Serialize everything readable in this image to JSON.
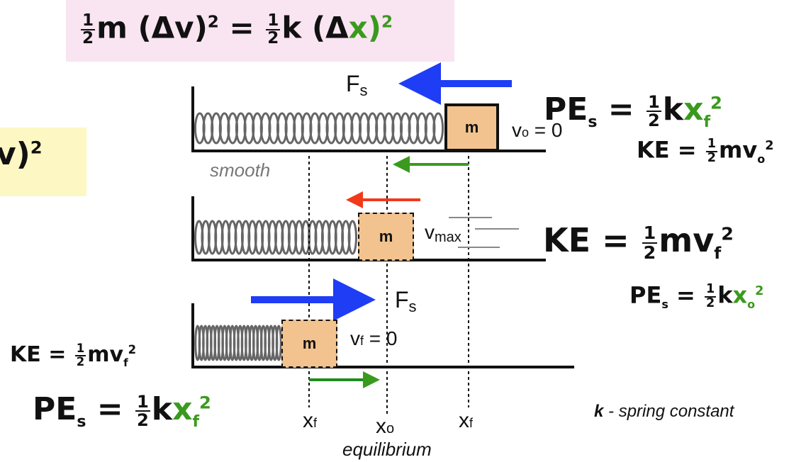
{
  "top_equation": {
    "one": "1",
    "two": "2",
    "m": "m",
    "paren_open": "(",
    "delta_v": "Δv",
    "paren_close": ")",
    "sq": "2",
    "equals": "=",
    "k": "k",
    "delta": "Δ",
    "x": "x"
  },
  "left_partial": {
    "text": "v)",
    "sq": "2"
  },
  "labels": {
    "fs_top": "F",
    "fs_top_sub": "s",
    "fs_bottom": "F",
    "fs_bottom_sub": "s",
    "v0": "v",
    "v0_sub": "o",
    "v0_eq": " = 0",
    "vmax": "v",
    "vmax_sub": "max",
    "vf": "v",
    "vf_sub": "f",
    "vf_eq": " = 0",
    "smooth": "smooth",
    "xf_left": "x",
    "xf_left_sub": "f",
    "xo": "x",
    "xo_sub": "o",
    "xf_right": "x",
    "xf_right_sub": "f",
    "equilibrium": "equilibrium",
    "k_bold": "k",
    "k_desc": " - spring constant",
    "mass": "m"
  },
  "eq_pe_top": {
    "pe": "PE",
    "s": "s",
    "eq": "=",
    "k": "k",
    "x": "x",
    "f": "f",
    "sq": "2"
  },
  "eq_ke_top": {
    "ke": "KE",
    "eq": "=",
    "m": "mv",
    "o": "o",
    "sq": "2"
  },
  "eq_ke_mid": {
    "ke": "KE",
    "eq": "=",
    "m": "mv",
    "f": "f",
    "sq": "2"
  },
  "eq_pe_mid": {
    "pe": "PE",
    "s": "s",
    "eq": "=",
    "k": "k",
    "x": "x",
    "o": "o",
    "sq": "2"
  },
  "eq_ke_left": {
    "ke": "KE",
    "eq": "=",
    "m": "mv",
    "f": "f",
    "sq": "2"
  },
  "eq_pe_left": {
    "pe": "PE",
    "s": "s",
    "eq": "=",
    "k": "k",
    "x": "x",
    "f": "f",
    "sq": "2"
  },
  "colors": {
    "pink_bg": "#f9e4f1",
    "yellow_bg": "#fdf7c3",
    "blue": "#1f3df5",
    "green": "#3a9a1e",
    "red": "#f03a1a",
    "mass": "#f2c38e"
  }
}
